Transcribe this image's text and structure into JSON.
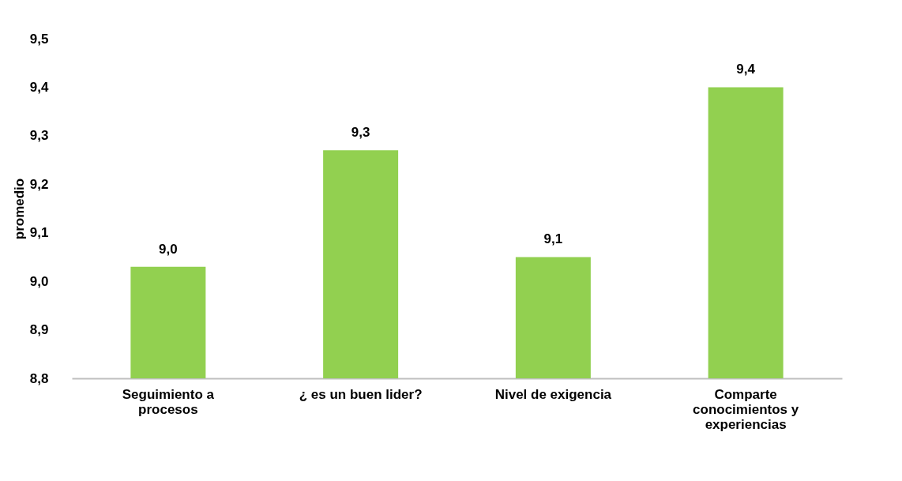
{
  "chart_data": {
    "type": "bar",
    "ylabel": "promedio",
    "categories": [
      "Seguimiento a procesos",
      "¿ es un buen lider?",
      "Nivel de exigencia",
      "Comparte conocimientos y experiencias"
    ],
    "values": [
      9.03,
      9.27,
      9.05,
      9.4
    ],
    "value_labels": [
      "9,0",
      "9,3",
      "9,1",
      "9,4"
    ],
    "color": "#92d050",
    "ylim": [
      8.8,
      9.5
    ],
    "yticks": [
      {
        "value": 8.8,
        "label": "8,8"
      },
      {
        "value": 8.9,
        "label": "8,9"
      },
      {
        "value": 9.0,
        "label": "9,0"
      },
      {
        "value": 9.1,
        "label": "9,1"
      },
      {
        "value": 9.2,
        "label": "9,2"
      },
      {
        "value": 9.3,
        "label": "9,3"
      },
      {
        "value": 9.4,
        "label": "9,4"
      },
      {
        "value": 9.5,
        "label": "9,5"
      }
    ],
    "grid": false
  }
}
